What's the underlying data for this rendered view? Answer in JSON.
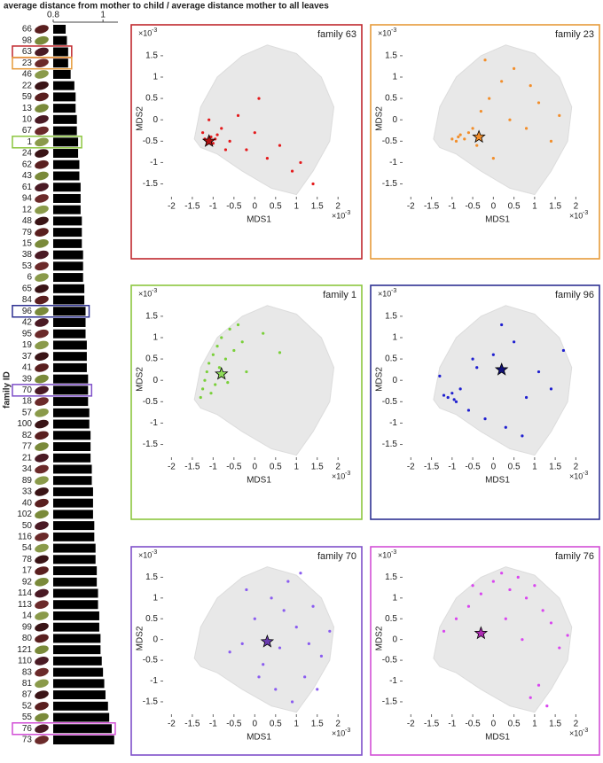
{
  "header": {
    "title": "average distance from mother to child / average distance mother to all leaves"
  },
  "chart_data": [
    {
      "type": "hbar",
      "y_label": "family ID",
      "color": "#000000",
      "categories": [
        "66",
        "98",
        "63",
        "23",
        "46",
        "22",
        "59",
        "13",
        "10",
        "67",
        "1",
        "24",
        "62",
        "43",
        "61",
        "94",
        "12",
        "48",
        "79",
        "15",
        "38",
        "53",
        "6",
        "65",
        "84",
        "96",
        "42",
        "95",
        "19",
        "37",
        "41",
        "39",
        "70",
        "18",
        "57",
        "100",
        "82",
        "77",
        "21",
        "34",
        "89",
        "33",
        "40",
        "102",
        "50",
        "116",
        "54",
        "78",
        "17",
        "92",
        "114",
        "113",
        "14",
        "99",
        "80",
        "121",
        "110",
        "83",
        "81",
        "87",
        "52",
        "55",
        "76",
        "73"
      ],
      "values": [
        0.85,
        0.855,
        0.86,
        0.86,
        0.87,
        0.885,
        0.89,
        0.89,
        0.895,
        0.895,
        0.9,
        0.9,
        0.905,
        0.905,
        0.91,
        0.91,
        0.91,
        0.915,
        0.915,
        0.915,
        0.92,
        0.92,
        0.92,
        0.925,
        0.925,
        0.93,
        0.93,
        0.93,
        0.935,
        0.935,
        0.935,
        0.94,
        0.94,
        0.94,
        0.945,
        0.945,
        0.95,
        0.95,
        0.95,
        0.955,
        0.955,
        0.96,
        0.96,
        0.96,
        0.965,
        0.965,
        0.97,
        0.97,
        0.975,
        0.975,
        0.98,
        0.98,
        0.985,
        0.985,
        0.99,
        0.99,
        0.995,
        1.0,
        1.005,
        1.01,
        1.02,
        1.025,
        1.035,
        1.045
      ],
      "xlim": [
        0.8,
        1.06
      ],
      "xticks": [
        0.8,
        1
      ],
      "highlights": [
        {
          "category": "63",
          "color": "#c0272d"
        },
        {
          "category": "23",
          "color": "#e69b3a"
        },
        {
          "category": "1",
          "color": "#8cc63f"
        },
        {
          "category": "96",
          "color": "#2e3192"
        },
        {
          "category": "70",
          "color": "#7e4fc9"
        },
        {
          "category": "76",
          "color": "#d24fd6"
        }
      ]
    },
    {
      "type": "scatter",
      "title": "family 63",
      "x_label": "MDS1",
      "y_label": "MDS2",
      "multiplier": {
        "base": "×10",
        "exponent": "-3"
      },
      "frame_color": "#c0272d",
      "color": "#e41a1c",
      "star_color": "#b01010",
      "x": [
        -1.2,
        -1.15,
        -1.05,
        -1.0,
        -0.95,
        -1.25,
        -0.9,
        -0.8,
        -0.6,
        -0.4,
        -0.2,
        0,
        0.3,
        0.6,
        0.9,
        1.1,
        1.4,
        -1.1,
        -0.7,
        0.1
      ],
      "y": [
        -0.45,
        -0.5,
        -0.4,
        -0.55,
        -0.45,
        -0.3,
        -0.35,
        -0.2,
        -0.5,
        0.1,
        -0.7,
        -0.3,
        -0.9,
        -0.6,
        -1.2,
        -1.0,
        -1.5,
        0.0,
        -0.7,
        0.5
      ],
      "star": {
        "x": -1.1,
        "y": -0.5
      },
      "xlim": [
        -2.2,
        2.4
      ],
      "ylim": [
        -1.8,
        1.85
      ],
      "xticks": [
        -2,
        -1.5,
        -1,
        -0.5,
        0,
        0.5,
        1,
        1.5,
        2
      ],
      "yticks": [
        -1.5,
        -1,
        -0.5,
        0,
        0.5,
        1,
        1.5
      ]
    },
    {
      "type": "scatter",
      "title": "family 23",
      "x_label": "MDS1",
      "y_label": "MDS2",
      "multiplier": {
        "base": "×10",
        "exponent": "-3"
      },
      "frame_color": "#e69b3a",
      "color": "#f28e2b",
      "star_color": "#f28e2b",
      "x": [
        -1.0,
        -0.9,
        -0.85,
        -0.8,
        -0.7,
        -0.6,
        -0.5,
        -0.3,
        -0.1,
        0.2,
        0.5,
        0.8,
        1.1,
        -0.4,
        0,
        0.4,
        1.4,
        -0.2,
        0.9,
        1.6
      ],
      "y": [
        -0.45,
        -0.5,
        -0.4,
        -0.35,
        -0.45,
        -0.3,
        -0.2,
        0.2,
        0.5,
        0.9,
        1.2,
        -0.2,
        0.4,
        -0.6,
        -0.9,
        0.0,
        -0.5,
        1.4,
        0.8,
        0.1
      ],
      "star": {
        "x": -0.35,
        "y": -0.4
      },
      "xlim": [
        -2.2,
        2.4
      ],
      "ylim": [
        -1.8,
        1.85
      ],
      "xticks": [
        -2,
        -1.5,
        -1,
        -0.5,
        0,
        0.5,
        1,
        1.5,
        2
      ],
      "yticks": [
        -1.5,
        -1,
        -0.5,
        0,
        0.5,
        1,
        1.5
      ]
    },
    {
      "type": "scatter",
      "title": "family 1",
      "x_label": "MDS1",
      "y_label": "MDS2",
      "multiplier": {
        "base": "×10",
        "exponent": "-3"
      },
      "frame_color": "#8cc63f",
      "color": "#7ad03a",
      "star_color": "#8fdc5a",
      "x": [
        -1.3,
        -1.25,
        -1.2,
        -1.15,
        -1.1,
        -1.0,
        -0.95,
        -0.9,
        -0.85,
        -0.8,
        -0.7,
        -0.6,
        -0.5,
        -0.4,
        -0.3,
        -1.05,
        -0.65,
        0.2,
        0.6,
        -0.2
      ],
      "y": [
        -0.4,
        -0.2,
        0.0,
        0.2,
        0.4,
        0.6,
        -0.1,
        0.8,
        0.3,
        1.0,
        0.5,
        1.2,
        0.7,
        1.3,
        0.9,
        -0.3,
        -0.05,
        1.1,
        0.65,
        0.2
      ],
      "star": {
        "x": -0.8,
        "y": 0.15
      },
      "xlim": [
        -2.2,
        2.4
      ],
      "ylim": [
        -1.8,
        1.85
      ],
      "xticks": [
        -2,
        -1.5,
        -1,
        -0.5,
        0,
        0.5,
        1,
        1.5,
        2
      ],
      "yticks": [
        -1.5,
        -1,
        -0.5,
        0,
        0.5,
        1,
        1.5
      ]
    },
    {
      "type": "scatter",
      "title": "family 96",
      "x_label": "MDS1",
      "y_label": "MDS2",
      "multiplier": {
        "base": "×10",
        "exponent": "-3"
      },
      "frame_color": "#2e3192",
      "color": "#1f1fd0",
      "star_color": "#10107a",
      "x": [
        -1.2,
        -1.1,
        -1.0,
        -0.95,
        -0.9,
        -0.8,
        -0.6,
        -0.4,
        -0.2,
        0,
        0.3,
        0.5,
        0.8,
        1.1,
        1.4,
        -0.5,
        0.2,
        0.7,
        1.7,
        -1.3
      ],
      "y": [
        -0.35,
        -0.4,
        -0.3,
        -0.45,
        -0.5,
        -0.2,
        -0.7,
        0.3,
        -0.9,
        0.6,
        -1.1,
        0.9,
        -0.4,
        0.2,
        -0.2,
        0.5,
        1.3,
        -1.3,
        0.7,
        0.1
      ],
      "star": {
        "x": 0.2,
        "y": 0.25
      },
      "xlim": [
        -2.2,
        2.4
      ],
      "ylim": [
        -1.8,
        1.85
      ],
      "xticks": [
        -2,
        -1.5,
        -1,
        -0.5,
        0,
        0.5,
        1,
        1.5,
        2
      ],
      "yticks": [
        -1.5,
        -1,
        -0.5,
        0,
        0.5,
        1,
        1.5
      ]
    },
    {
      "type": "scatter",
      "title": "family 70",
      "x_label": "MDS1",
      "y_label": "MDS2",
      "multiplier": {
        "base": "×10",
        "exponent": "-3"
      },
      "frame_color": "#7e4fc9",
      "color": "#8a5cf0",
      "star_color": "#6a3bb0",
      "x": [
        -0.6,
        -0.3,
        0,
        0.2,
        0.4,
        0.6,
        0.8,
        1.0,
        1.2,
        1.4,
        1.6,
        1.8,
        0.5,
        0.9,
        -0.2,
        1.1,
        1.5,
        0.1,
        0.7,
        1.3
      ],
      "y": [
        -0.3,
        -0.1,
        0.5,
        -0.6,
        1.0,
        -0.2,
        1.4,
        0.3,
        -0.9,
        0.8,
        -0.4,
        0.2,
        -1.2,
        -1.5,
        1.2,
        1.6,
        -1.2,
        -0.9,
        0.7,
        -0.1
      ],
      "star": {
        "x": 0.3,
        "y": -0.05
      },
      "xlim": [
        -2.2,
        2.4
      ],
      "ylim": [
        -1.8,
        1.85
      ],
      "xticks": [
        -2,
        -1.5,
        -1,
        -0.5,
        0,
        0.5,
        1,
        1.5,
        2
      ],
      "yticks": [
        -1.5,
        -1,
        -0.5,
        0,
        0.5,
        1,
        1.5
      ]
    },
    {
      "type": "scatter",
      "title": "family 76",
      "x_label": "MDS1",
      "y_label": "MDS2",
      "multiplier": {
        "base": "×10",
        "exponent": "-3"
      },
      "frame_color": "#d24fd6",
      "color": "#d946ef",
      "star_color": "#b02cb5",
      "x": [
        -1.2,
        -0.9,
        -0.6,
        -0.3,
        0,
        0.2,
        0.4,
        0.6,
        0.8,
        1.0,
        1.2,
        1.4,
        1.6,
        1.8,
        0.3,
        0.9,
        1.1,
        1.3,
        -0.5,
        0.7
      ],
      "y": [
        0.2,
        0.5,
        0.8,
        1.1,
        1.4,
        1.6,
        1.2,
        1.5,
        1.0,
        1.3,
        0.7,
        0.4,
        -0.2,
        0.1,
        0.5,
        -1.4,
        -1.1,
        -1.6,
        1.3,
        0.0
      ],
      "star": {
        "x": -0.3,
        "y": 0.15
      },
      "xlim": [
        -2.2,
        2.4
      ],
      "ylim": [
        -1.8,
        1.85
      ],
      "xticks": [
        -2,
        -1.5,
        -1,
        -0.5,
        0,
        0.5,
        1,
        1.5,
        2
      ],
      "yticks": [
        -1.5,
        -1,
        -0.5,
        0,
        0.5,
        1,
        1.5
      ]
    }
  ]
}
